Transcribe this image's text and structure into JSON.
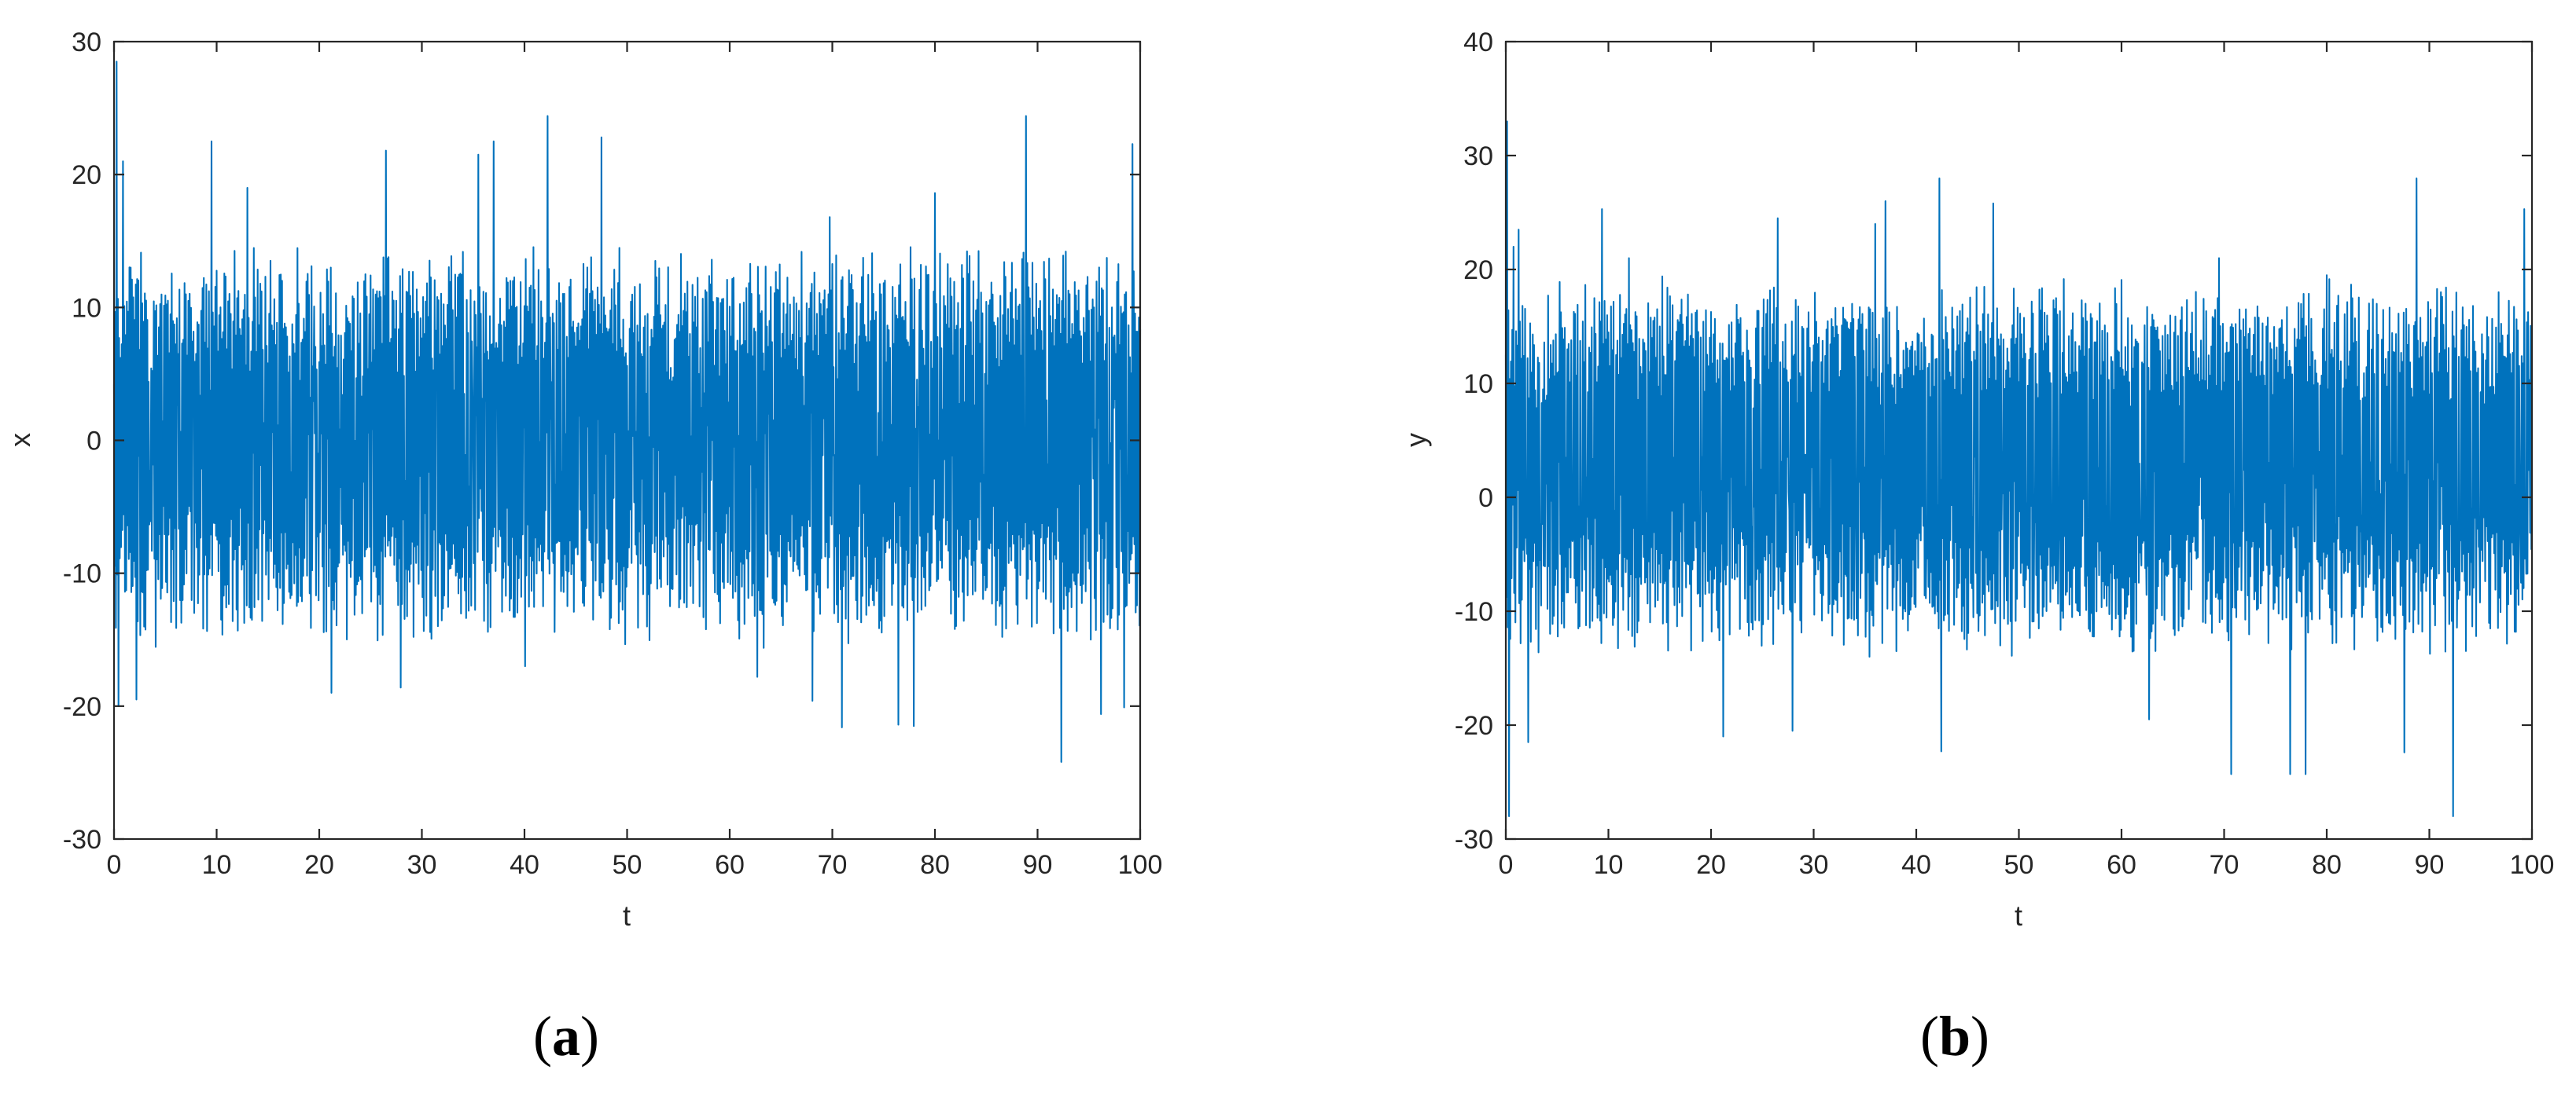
{
  "chart_data": [
    {
      "type": "line",
      "panel_label": "a",
      "xlabel": "t",
      "ylabel": "x",
      "xlim": [
        0,
        100
      ],
      "ylim": [
        -30,
        30
      ],
      "xticks": [
        0,
        10,
        20,
        30,
        40,
        50,
        60,
        70,
        80,
        90,
        100
      ],
      "yticks": [
        -30,
        -20,
        -10,
        0,
        10,
        20,
        30
      ],
      "grid": false,
      "series_color": "#0072BD",
      "peaks": [
        [
          0.2,
          28.5
        ],
        [
          0.4,
          -20
        ],
        [
          0.9,
          21
        ],
        [
          1.6,
          13
        ],
        [
          2.2,
          -19.5
        ],
        [
          9.5,
          22.5
        ],
        [
          13,
          19
        ],
        [
          21.2,
          -19
        ],
        [
          26.5,
          21.8
        ],
        [
          28,
          -18.6
        ],
        [
          35.5,
          21.5
        ],
        [
          37,
          22.5
        ],
        [
          40,
          -17
        ],
        [
          42.3,
          24.4
        ],
        [
          47.5,
          22.8
        ],
        [
          62.7,
          -17.8
        ],
        [
          68,
          -19.6
        ],
        [
          69.8,
          16.8
        ],
        [
          71,
          -21.6
        ],
        [
          76.5,
          -21.4
        ],
        [
          78,
          -21.5
        ],
        [
          80,
          18.6
        ],
        [
          88.9,
          24.4
        ],
        [
          92.3,
          -24.2
        ],
        [
          96.2,
          -20.6
        ],
        [
          98.5,
          -20.1
        ],
        [
          99.3,
          22.3
        ]
      ]
    },
    {
      "type": "line",
      "panel_label": "b",
      "xlabel": "t",
      "ylabel": "y",
      "xlim": [
        0,
        100
      ],
      "ylim": [
        -30,
        40
      ],
      "xticks": [
        0,
        10,
        20,
        30,
        40,
        50,
        60,
        70,
        80,
        90,
        100
      ],
      "yticks": [
        -30,
        -20,
        -10,
        0,
        10,
        20,
        30,
        40
      ],
      "grid": false,
      "series_color": "#0072BD",
      "peaks": [
        [
          0.15,
          33
        ],
        [
          0.3,
          -28
        ],
        [
          0.8,
          22
        ],
        [
          1.3,
          23.5
        ],
        [
          2.2,
          -21.5
        ],
        [
          9.4,
          25.3
        ],
        [
          12,
          21
        ],
        [
          21.2,
          -21
        ],
        [
          26.5,
          24.5
        ],
        [
          28,
          -20.5
        ],
        [
          36,
          24
        ],
        [
          37,
          26
        ],
        [
          42.3,
          28
        ],
        [
          42.5,
          -22.3
        ],
        [
          47.5,
          25.8
        ],
        [
          62.7,
          -19.5
        ],
        [
          69.5,
          21
        ],
        [
          70.7,
          -24.3
        ],
        [
          76.5,
          -24.3
        ],
        [
          78,
          -24.3
        ],
        [
          80,
          19.5
        ],
        [
          87.6,
          -22.4
        ],
        [
          88.8,
          28
        ],
        [
          92.3,
          -28
        ],
        [
          99.3,
          25.3
        ]
      ]
    }
  ]
}
